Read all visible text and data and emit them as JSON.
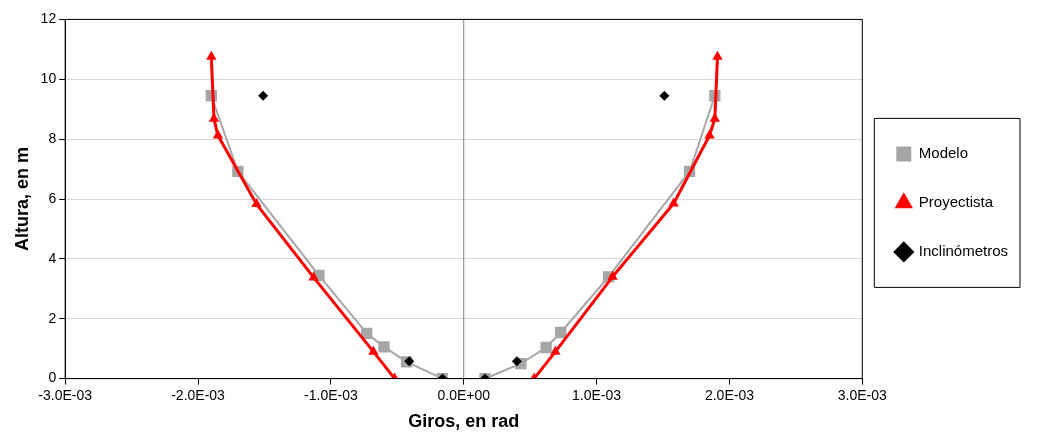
{
  "chart_data": {
    "type": "line",
    "xlabel": "Giros, en rad",
    "ylabel": "Altura, en m",
    "xlim": [
      -0.003,
      0.003
    ],
    "xticks": [
      {
        "value": -0.003,
        "label": "-3.0E-03"
      },
      {
        "value": -0.002,
        "label": "-2.0E-03"
      },
      {
        "value": -0.001,
        "label": "-1.0E-03"
      },
      {
        "value": 0,
        "label": "0.0E+00"
      },
      {
        "value": 0.001,
        "label": "1.0E-03"
      },
      {
        "value": 0.002,
        "label": "2.0E-03"
      },
      {
        "value": 0.003,
        "label": "3.0E-03"
      }
    ],
    "ylim": [
      0,
      12
    ],
    "yticks": [
      0,
      2,
      4,
      6,
      8,
      10,
      12
    ],
    "grid": "y",
    "legend": "right",
    "ref_lines": [
      {
        "axis": "x",
        "value": 0,
        "color": "#808080"
      }
    ],
    "series": [
      {
        "name": "Modelo",
        "type": "line",
        "marker": "square",
        "color": "#a6a6a6",
        "x": [
          -0.0019,
          -0.0017,
          -0.00109,
          -0.00073,
          -0.0006,
          -0.00043,
          -0.00016,
          null,
          0.00016,
          0.00043,
          0.00062,
          0.00073,
          0.00109,
          0.0017,
          0.00189
        ],
        "values": [
          9.45,
          6.92,
          3.45,
          1.51,
          1.06,
          0.56,
          0,
          null,
          0,
          0.5,
          1.04,
          1.54,
          3.4,
          6.92,
          9.45
        ]
      },
      {
        "name": "Proyectista",
        "type": "line",
        "marker": "triangle",
        "color": "#ff0000",
        "x": [
          -0.0019,
          -0.00188,
          -0.00185,
          -0.00156,
          -0.00113,
          -0.00068,
          -0.00052,
          null,
          0.00053,
          0.00069,
          0.00112,
          0.00158,
          0.00185,
          0.00189,
          0.00191
        ],
        "values": [
          10.75,
          8.68,
          8.12,
          5.83,
          3.38,
          0.9,
          0,
          null,
          0,
          0.9,
          3.4,
          5.85,
          8.12,
          8.68,
          10.75
        ]
      },
      {
        "name": "Inclinómetros",
        "type": "scatter",
        "marker": "diamond",
        "color": "#000000",
        "x": [
          -0.00151,
          -0.00041,
          -0.00016,
          0.00016,
          0.0004,
          0.00151
        ],
        "values": [
          9.45,
          0.58,
          0,
          0,
          0.58,
          9.45
        ]
      }
    ]
  }
}
